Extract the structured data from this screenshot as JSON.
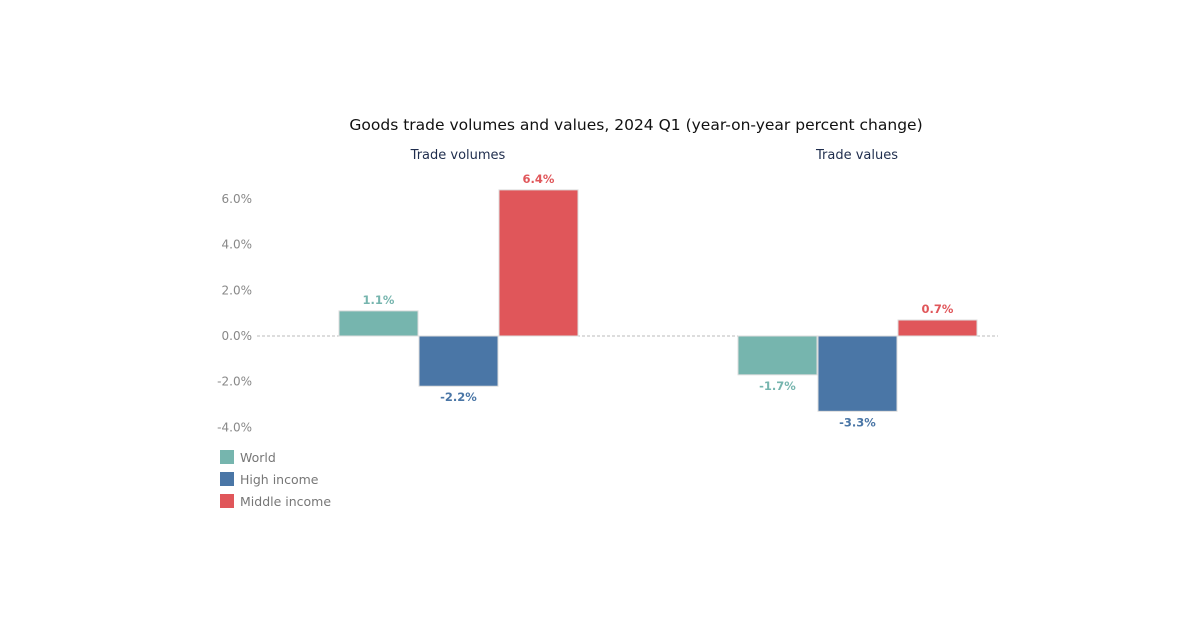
{
  "chart_data": {
    "type": "bar",
    "title": "Goods trade volumes and values, 2024 Q1 (year-on-year percent change)",
    "panels": [
      "Trade volumes",
      "Trade values"
    ],
    "series": [
      {
        "name": "World",
        "color": "#76b5ae",
        "values": [
          1.1,
          -1.7
        ],
        "labels": [
          "1.1%",
          "-1.7%"
        ]
      },
      {
        "name": "High income",
        "color": "#4a76a6",
        "values": [
          -2.2,
          -3.3
        ],
        "labels": [
          "-2.2%",
          "-3.3%"
        ]
      },
      {
        "name": "Middle income",
        "color": "#e0565a",
        "values": [
          6.4,
          0.7
        ],
        "labels": [
          "6.4%",
          "0.7%"
        ]
      }
    ],
    "yticks": [
      6,
      4,
      2,
      0,
      -2,
      -4
    ],
    "ytick_labels": [
      "6.0%",
      "4.0%",
      "2.0%",
      "0.0%",
      "-2.0%",
      "-4.0%"
    ],
    "ylim": [
      -4,
      6.4
    ],
    "legend": "bottom-left",
    "grid": false
  }
}
